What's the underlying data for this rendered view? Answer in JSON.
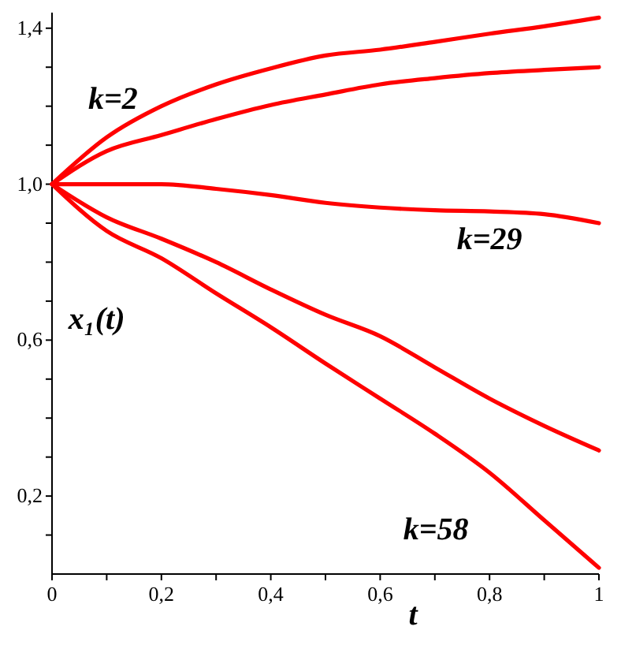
{
  "chart_data": {
    "type": "line",
    "xlabel": "t",
    "ylabel": "x₁(t)",
    "xlim": [
      0,
      1
    ],
    "ylim": [
      0,
      1.44
    ],
    "xticks": [
      0,
      {
        "value": 0.1,
        "label": null
      },
      {
        "value": 0.2,
        "label": "0,2"
      },
      {
        "value": 0.3,
        "label": null
      },
      {
        "value": 0.4,
        "label": "0,4"
      },
      {
        "value": 0.5,
        "label": null
      },
      {
        "value": 0.6,
        "label": "0,6"
      },
      {
        "value": 0.7,
        "label": null
      },
      {
        "value": 0.8,
        "label": "0,8"
      },
      {
        "value": 0.9,
        "label": null
      },
      1
    ],
    "yticks": [
      {
        "value": 0.1,
        "label": null
      },
      {
        "value": 0.2,
        "label": "0,2"
      },
      {
        "value": 0.3,
        "label": null
      },
      {
        "value": 0.4,
        "label": null
      },
      {
        "value": 0.5,
        "label": null
      },
      {
        "value": 0.6,
        "label": "0,6"
      },
      {
        "value": 0.7,
        "label": null
      },
      {
        "value": 0.8,
        "label": null
      },
      {
        "value": 0.9,
        "label": null
      },
      {
        "value": 1.0,
        "label": "1,0"
      },
      {
        "value": 1.1,
        "label": null
      },
      {
        "value": 1.2,
        "label": null
      },
      {
        "value": 1.3,
        "label": null
      },
      {
        "value": 1.4,
        "label": "1,4"
      }
    ],
    "x": [
      0,
      0.1,
      0.2,
      0.3,
      0.4,
      0.5,
      0.6,
      0.7,
      0.8,
      0.9,
      1
    ],
    "series": [
      {
        "name": "k=2",
        "color": "#ff0000",
        "values": [
          1.0,
          1.12,
          1.2,
          1.256,
          1.297,
          1.33,
          1.345,
          1.365,
          1.386,
          1.405,
          1.427
        ]
      },
      {
        "color": "#ff0000",
        "values": [
          1.0,
          1.085,
          1.126,
          1.167,
          1.203,
          1.23,
          1.256,
          1.272,
          1.285,
          1.293,
          1.3
        ]
      },
      {
        "name": "k=29",
        "color": "#ff0000",
        "values": [
          1.0,
          1.0,
          1.0,
          0.988,
          0.972,
          0.952,
          0.94,
          0.933,
          0.93,
          0.923,
          0.9
        ]
      },
      {
        "color": "#ff0000",
        "values": [
          1.0,
          0.915,
          0.86,
          0.8,
          0.73,
          0.665,
          0.61,
          0.53,
          0.45,
          0.38,
          0.317
        ]
      },
      {
        "name": "k=58",
        "color": "#ff0000",
        "values": [
          1.0,
          0.88,
          0.81,
          0.72,
          0.633,
          0.54,
          0.45,
          0.36,
          0.26,
          0.138,
          0.016
        ]
      }
    ],
    "grid": false,
    "marker": "none",
    "line_style": "solid"
  }
}
